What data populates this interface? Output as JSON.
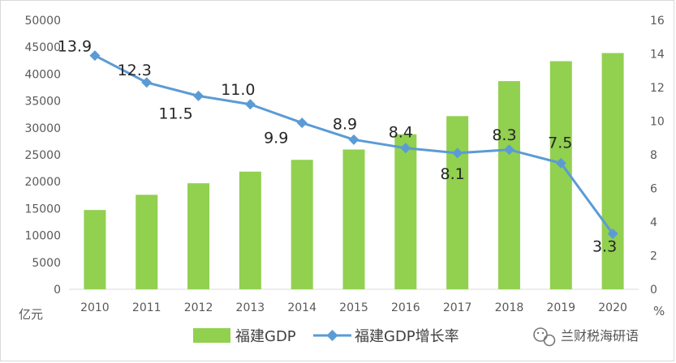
{
  "chart_data": {
    "type": "bar+line",
    "categories": [
      "2010",
      "2011",
      "2012",
      "2013",
      "2014",
      "2015",
      "2016",
      "2017",
      "2018",
      "2019",
      "2020"
    ],
    "series": [
      {
        "name": "福建GDP",
        "type": "bar",
        "axis": "left",
        "color": "#92d050",
        "values": [
          14737,
          17560,
          19702,
          21868,
          24056,
          25980,
          28811,
          32182,
          38688,
          42395,
          43904
        ]
      },
      {
        "name": "福建GDP增长率",
        "type": "line",
        "axis": "right",
        "color": "#5b9bd5",
        "values": [
          13.9,
          12.3,
          11.5,
          11.0,
          9.9,
          8.9,
          8.4,
          8.1,
          8.3,
          7.5,
          3.3
        ],
        "data_labels": [
          "13.9",
          "12.3",
          "11.5",
          "11.0",
          "9.9",
          "8.9",
          "8.4",
          "8.1",
          "8.3",
          "7.5",
          "3.3"
        ]
      }
    ],
    "y_left": {
      "unit_label": "亿元",
      "ylim": [
        0,
        50000
      ],
      "ticks": [
        "0",
        "5000",
        "10000",
        "15000",
        "20000",
        "25000",
        "30000",
        "35000",
        "40000",
        "45000",
        "50000"
      ]
    },
    "y_right": {
      "unit_label": "%",
      "ylim": [
        0,
        16
      ],
      "ticks": [
        "0",
        "2",
        "4",
        "6",
        "8",
        "10",
        "12",
        "14",
        "16"
      ]
    },
    "grid": false,
    "legend_position": "bottom-center"
  },
  "watermark": {
    "text": "兰财税海研语",
    "icon": "wechat-icon"
  }
}
